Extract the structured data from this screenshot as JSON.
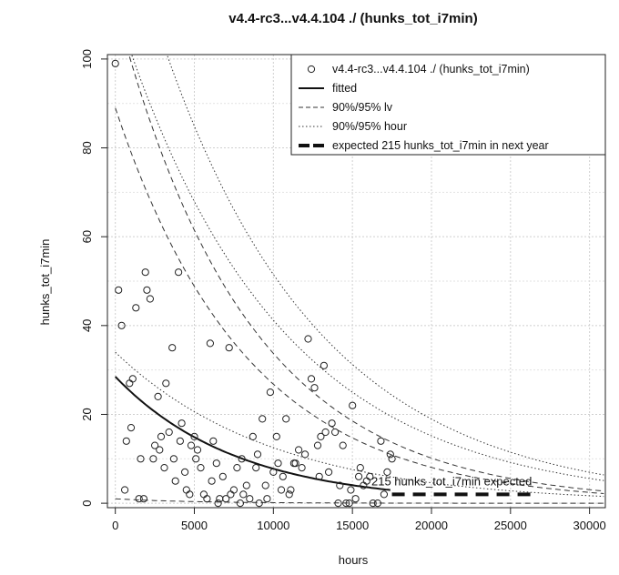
{
  "chart_data": {
    "type": "scatter",
    "title": "v4.4-rc3...v4.4.104 ./ (hunks_tot_i7min)",
    "xlabel": "hours",
    "ylabel": "hunks_tot_i7min",
    "xlim": [
      -500,
      31000
    ],
    "ylim": [
      -1,
      101
    ],
    "xticks": [
      0,
      5000,
      10000,
      15000,
      20000,
      25000,
      30000
    ],
    "xtick_labels": [
      "0",
      "5000",
      "10000",
      "15000",
      "20000",
      "25000",
      "30000"
    ],
    "yticks": [
      0,
      20,
      40,
      60,
      80,
      100
    ],
    "ytick_labels": [
      "0",
      "20",
      "40",
      "60",
      "80",
      "100"
    ],
    "grid": true,
    "legend_position": "top-right",
    "legend": [
      {
        "label": "v4.4-rc3...v4.4.104 ./ (hunks_tot_i7min)",
        "style": "circle"
      },
      {
        "label": "fitted",
        "style": "solid"
      },
      {
        "label": "90%/95% lv",
        "style": "dashed"
      },
      {
        "label": "90%/95% hour",
        "style": "dotted"
      },
      {
        "label": "expected 215 hunks_tot_i7min in next year",
        "style": "thick-dashed"
      }
    ],
    "annotation": {
      "text": "215 hunks_tot_i7min expected",
      "x": 16200,
      "y": 4
    },
    "points": [
      [
        0,
        99
      ],
      [
        200,
        48
      ],
      [
        400,
        40
      ],
      [
        600,
        3
      ],
      [
        700,
        14
      ],
      [
        900,
        27
      ],
      [
        1000,
        17
      ],
      [
        1100,
        28
      ],
      [
        1300,
        44
      ],
      [
        1500,
        1
      ],
      [
        1600,
        10
      ],
      [
        1800,
        1
      ],
      [
        1900,
        52
      ],
      [
        2000,
        48
      ],
      [
        2200,
        46
      ],
      [
        2400,
        10
      ],
      [
        2500,
        13
      ],
      [
        2700,
        24
      ],
      [
        2800,
        12
      ],
      [
        2900,
        15
      ],
      [
        3100,
        8
      ],
      [
        3200,
        27
      ],
      [
        3400,
        16
      ],
      [
        3600,
        35
      ],
      [
        3700,
        10
      ],
      [
        3800,
        5
      ],
      [
        4000,
        52
      ],
      [
        4100,
        14
      ],
      [
        4200,
        18
      ],
      [
        4400,
        7
      ],
      [
        4500,
        3
      ],
      [
        4700,
        2
      ],
      [
        4800,
        13
      ],
      [
        5000,
        15
      ],
      [
        5100,
        10
      ],
      [
        5200,
        12
      ],
      [
        5400,
        8
      ],
      [
        5600,
        2
      ],
      [
        5800,
        1
      ],
      [
        6000,
        36
      ],
      [
        6100,
        5
      ],
      [
        6200,
        14
      ],
      [
        6400,
        9
      ],
      [
        6500,
        0
      ],
      [
        6600,
        1
      ],
      [
        6800,
        6
      ],
      [
        7000,
        1
      ],
      [
        7200,
        35
      ],
      [
        7300,
        2
      ],
      [
        7500,
        3
      ],
      [
        7700,
        8
      ],
      [
        7900,
        0
      ],
      [
        8000,
        10
      ],
      [
        8100,
        2
      ],
      [
        8300,
        4
      ],
      [
        8500,
        1
      ],
      [
        8700,
        15
      ],
      [
        8900,
        8
      ],
      [
        9000,
        11
      ],
      [
        9100,
        0
      ],
      [
        9300,
        19
      ],
      [
        9500,
        4
      ],
      [
        9600,
        1
      ],
      [
        9800,
        25
      ],
      [
        10000,
        7
      ],
      [
        10200,
        15
      ],
      [
        10300,
        9
      ],
      [
        10500,
        3
      ],
      [
        10600,
        6
      ],
      [
        10800,
        19
      ],
      [
        11000,
        2
      ],
      [
        11100,
        3
      ],
      [
        11300,
        9
      ],
      [
        11400,
        9
      ],
      [
        11600,
        12
      ],
      [
        11800,
        8
      ],
      [
        12000,
        11
      ],
      [
        12200,
        37
      ],
      [
        12400,
        28
      ],
      [
        12600,
        26
      ],
      [
        12800,
        13
      ],
      [
        12900,
        6
      ],
      [
        13000,
        15
      ],
      [
        13200,
        31
      ],
      [
        13300,
        16
      ],
      [
        13500,
        7
      ],
      [
        13700,
        18
      ],
      [
        13900,
        16
      ],
      [
        14100,
        0
      ],
      [
        14200,
        4
      ],
      [
        14400,
        13
      ],
      [
        14600,
        0
      ],
      [
        14800,
        0
      ],
      [
        14900,
        3
      ],
      [
        15000,
        22
      ],
      [
        15200,
        1
      ],
      [
        15400,
        6
      ],
      [
        15500,
        8
      ],
      [
        15700,
        4
      ],
      [
        15900,
        5
      ],
      [
        16100,
        6
      ],
      [
        16300,
        0
      ],
      [
        16600,
        0
      ],
      [
        16800,
        14
      ],
      [
        17000,
        2
      ],
      [
        17200,
        7
      ],
      [
        17400,
        11
      ],
      [
        17500,
        10
      ]
    ],
    "fitted": {
      "a": 28.5,
      "b": 0.00013
    },
    "lv90": {
      "a": 89,
      "b": 0.00012
    },
    "lv95": {
      "a": 112,
      "b": 0.00012
    },
    "hour90": {
      "a": 112,
      "b": 0.0001
    },
    "hour95": {
      "a": 140,
      "b": 0.0001
    },
    "lower_dash_start": 1.0,
    "lower_dot_start": 34,
    "lower_dot_rate": 4e-05,
    "expected_segment": {
      "x0": 17500,
      "x1": 26500,
      "y": 2
    }
  }
}
